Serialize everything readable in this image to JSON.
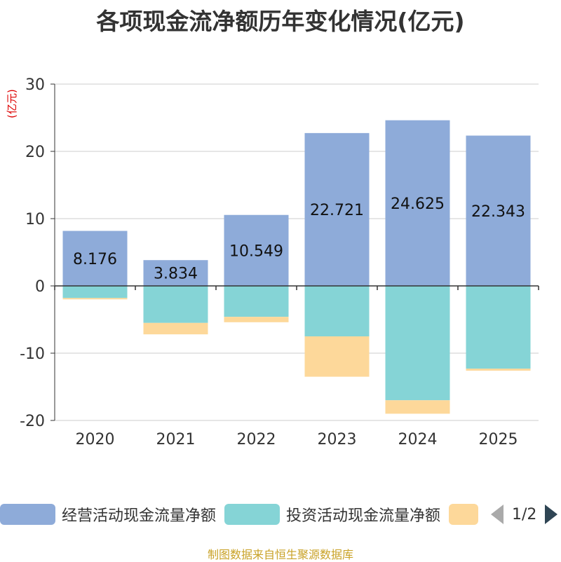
{
  "source": "制图数据来自恒生聚源数据库",
  "pager": {
    "label": "1/2"
  },
  "chart_data": {
    "type": "bar",
    "stacked": true,
    "title": "各项现金流净额历年变化情况(亿元)",
    "ylabel": "(亿元)",
    "xlabel": "",
    "ylim": [
      -20,
      30
    ],
    "yticks": [
      30,
      20,
      10,
      0,
      -10,
      -20
    ],
    "categories": [
      "2020",
      "2021",
      "2022",
      "2023",
      "2024",
      "2025"
    ],
    "series": [
      {
        "name": "经营活动现金流量净额",
        "color": "#8eabd9",
        "values": [
          8.176,
          3.834,
          10.549,
          22.721,
          24.625,
          22.343
        ],
        "labels": [
          "8.176",
          "3.834",
          "10.549",
          "22.721",
          "24.625",
          "22.343"
        ]
      },
      {
        "name": "投资活动现金流量净额",
        "color": "#85d4d6",
        "values": [
          -1.8,
          -5.5,
          -4.6,
          -7.5,
          -17.0,
          -12.3
        ]
      },
      {
        "name": "",
        "color": "#fdd89a",
        "values": [
          -0.2,
          -1.7,
          -0.8,
          -6.0,
          -2.0,
          -0.3
        ]
      }
    ]
  }
}
